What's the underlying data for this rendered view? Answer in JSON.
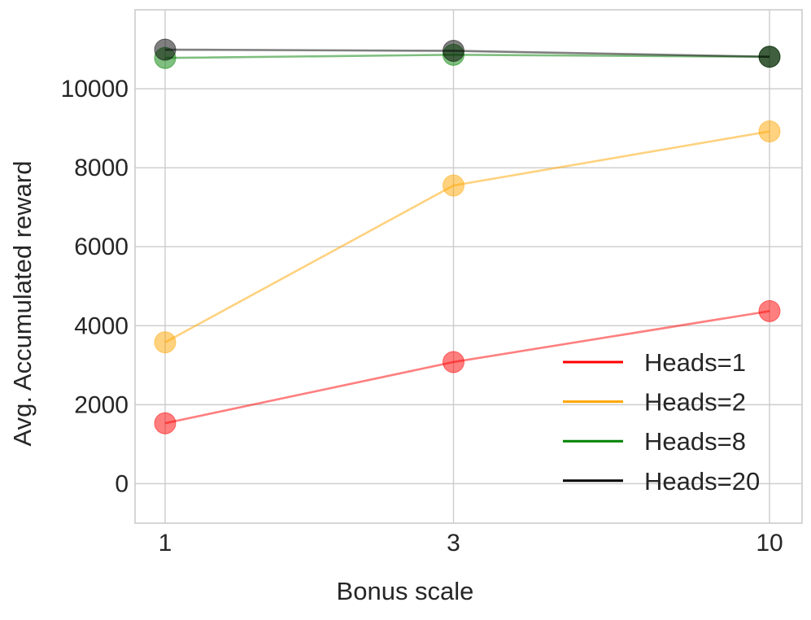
{
  "chart_data": {
    "type": "line",
    "title": "",
    "xlabel": "Bonus scale",
    "ylabel": "Avg. Accumulated reward",
    "x_scale": "log",
    "x": [
      1,
      3,
      10
    ],
    "x_tick_labels": [
      "1",
      "3",
      "10"
    ],
    "ylim": [
      -1000,
      12000
    ],
    "y_ticks": [
      0,
      2000,
      4000,
      6000,
      8000,
      10000
    ],
    "y_tick_labels": [
      "0",
      "2000",
      "4000",
      "6000",
      "8000",
      "10000"
    ],
    "grid": true,
    "legend_position": "lower-right",
    "series": [
      {
        "name": "Heads=1",
        "color": "#ff0000",
        "values": [
          1530,
          3080,
          4370
        ]
      },
      {
        "name": "Heads=2",
        "color": "#ffa500",
        "values": [
          3580,
          7550,
          8920
        ]
      },
      {
        "name": "Heads=8",
        "color": "#008000",
        "values": [
          10780,
          10860,
          10810
        ]
      },
      {
        "name": "Heads=20",
        "color": "#000000",
        "values": [
          10990,
          10960,
          10810
        ]
      }
    ]
  }
}
